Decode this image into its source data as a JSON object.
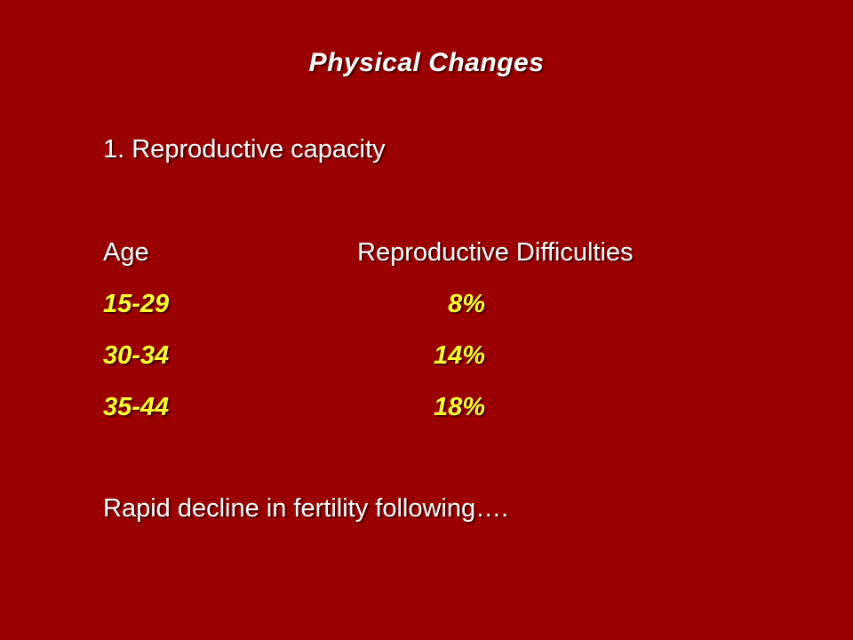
{
  "slide": {
    "title": "Physical Changes",
    "subtitle": "1. Reproductive capacity",
    "table": {
      "headers": [
        "Age",
        "Reproductive Difficulties"
      ],
      "rows": [
        {
          "age": "15-29",
          "pct": "8%"
        },
        {
          "age": "30-34",
          "pct": "14%"
        },
        {
          "age": "35-44",
          "pct": "18%"
        }
      ]
    },
    "footer": "Rapid decline in fertility following…."
  },
  "colors": {
    "background": "#9a0000",
    "text": "#ffffff",
    "highlight": "#ffff33"
  }
}
